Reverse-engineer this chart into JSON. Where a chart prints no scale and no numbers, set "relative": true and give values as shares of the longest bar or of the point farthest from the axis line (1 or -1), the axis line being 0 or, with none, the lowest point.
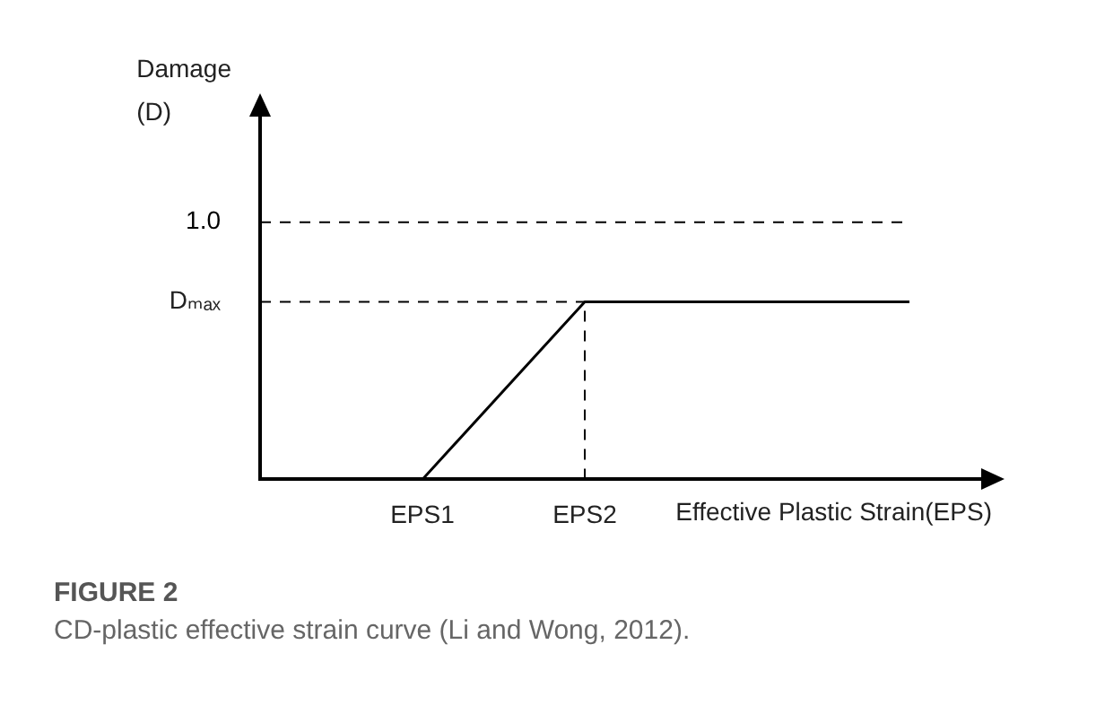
{
  "chart_data": {
    "type": "line",
    "title": "FIGURE 2",
    "subtitle": "CD-plastic effective strain curve (Li and Wong, 2012).",
    "ylabel": "Damage\n(D)",
    "xlabel": "Effective Plastic Strain(EPS)",
    "relative": true,
    "categories": [
      null,
      "EPS1",
      "EPS2",
      null,
      null
    ],
    "series": [
      {
        "color": "#000000",
        "values": [
          null,
          0,
          0.69,
          0.69,
          0.69
        ]
      },
      {
        "name": "1.0",
        "color": "#000000",
        "line_style": "dashed",
        "values": [
          1,
          1,
          1,
          1,
          1
        ]
      }
    ],
    "ref_lines": [
      {
        "axis": "y",
        "value": 0.69,
        "label": "Dₘₐₓ",
        "line_style": "dashed",
        "color": "#000000"
      },
      {
        "axis": "x",
        "value": "EPS2",
        "line_style": "dashed",
        "color": "#000000"
      }
    ],
    "grid": false,
    "legend": false
  }
}
